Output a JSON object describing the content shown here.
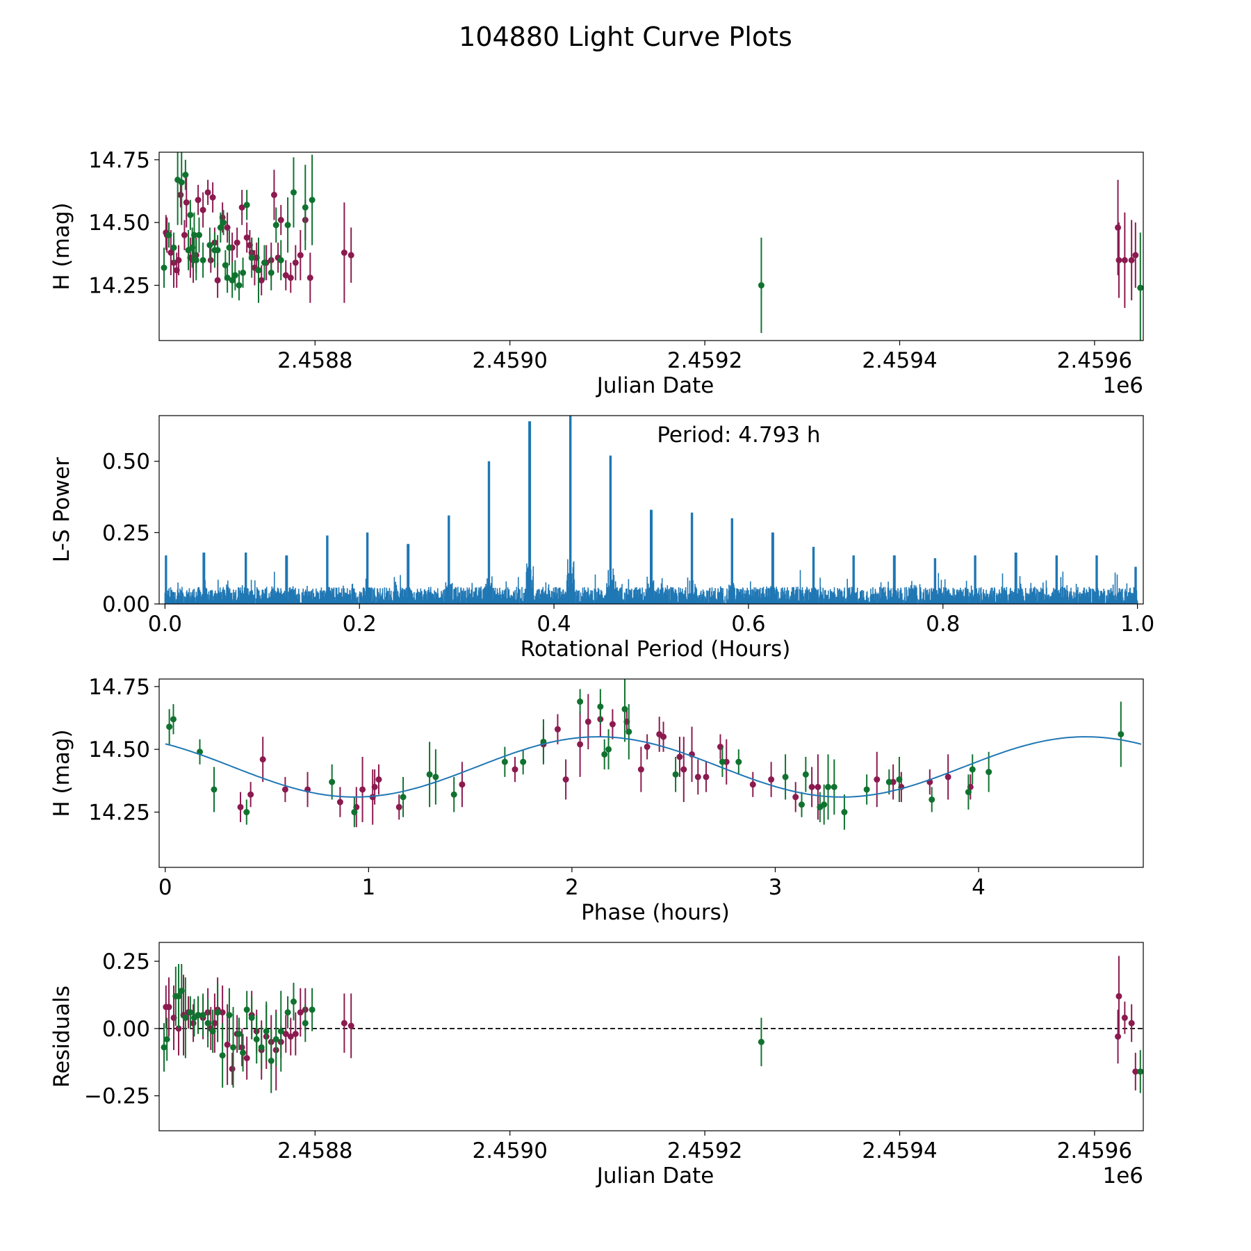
{
  "figure_title": "104880 Light Curve Plots",
  "colors": {
    "magenta": "#8b1a4f",
    "green": "#10722f",
    "blue": "#1f77b4",
    "black": "#000000"
  },
  "chart_data": [
    {
      "id": "lightcurve",
      "type": "scatter",
      "title": "",
      "xlabel": "Julian Date",
      "ylabel": "H (mag)",
      "x_offset_text": "1e6",
      "xlim": [
        2.45864,
        2.45965
      ],
      "ylim": [
        14.03,
        14.78
      ],
      "xticks": [
        2.4588,
        2.459,
        2.4592,
        2.4594,
        2.4596
      ],
      "xtick_labels": [
        "2.4588",
        "2.4590",
        "2.4592",
        "2.4594",
        "2.4596"
      ],
      "yticks": [
        14.25,
        14.5,
        14.75
      ],
      "ytick_labels": [
        "14.25",
        "14.50",
        "14.75"
      ],
      "series": [
        {
          "name": "magenta points",
          "color": "#8b1a4f",
          "x": [
            2.458647,
            2.458648,
            2.458652,
            2.458655,
            2.458658,
            2.45866,
            2.458662,
            2.458666,
            2.458668,
            2.458672,
            2.458675,
            2.458678,
            2.45868,
            2.458685,
            2.45869,
            2.458693,
            2.458695,
            2.458697,
            2.4587,
            2.458705,
            2.45871,
            2.458715,
            2.45872,
            2.458725,
            2.45873,
            2.458733,
            2.458735,
            2.458738,
            2.45874,
            2.458745,
            2.45875,
            2.458755,
            2.458758,
            2.458762,
            2.458765,
            2.45877,
            2.458775,
            2.45878,
            2.458785,
            2.45879,
            2.458795,
            2.45883,
            2.458837,
            2.459624,
            2.459625,
            2.459631,
            2.459638,
            2.459642
          ],
          "y": [
            14.46,
            14.45,
            14.38,
            14.34,
            14.31,
            14.35,
            14.61,
            14.45,
            14.58,
            14.36,
            14.35,
            14.37,
            14.59,
            14.55,
            14.62,
            14.35,
            14.6,
            14.42,
            14.27,
            14.52,
            14.48,
            14.4,
            14.42,
            14.56,
            14.44,
            14.41,
            14.38,
            14.32,
            14.36,
            14.27,
            14.34,
            14.35,
            14.61,
            14.36,
            14.51,
            14.29,
            14.28,
            14.34,
            14.37,
            14.51,
            14.28,
            14.38,
            14.37,
            14.48,
            14.35,
            14.35,
            14.35,
            14.37
          ],
          "err": [
            0.07,
            0.07,
            0.09,
            0.1,
            0.07,
            0.06,
            0.05,
            0.06,
            0.1,
            0.08,
            0.09,
            0.07,
            0.06,
            0.07,
            0.05,
            0.05,
            0.06,
            0.06,
            0.07,
            0.06,
            0.06,
            0.06,
            0.06,
            0.07,
            0.06,
            0.06,
            0.06,
            0.07,
            0.06,
            0.06,
            0.07,
            0.07,
            0.1,
            0.06,
            0.06,
            0.06,
            0.06,
            0.07,
            0.1,
            0.08,
            0.1,
            0.2,
            0.11,
            0.19,
            0.15,
            0.19,
            0.16,
            0.13
          ]
        },
        {
          "name": "green points",
          "color": "#10722f",
          "x": [
            2.458645,
            2.45865,
            2.458655,
            2.458659,
            2.458663,
            2.458667,
            2.45867,
            2.458672,
            2.458674,
            2.458676,
            2.458678,
            2.458681,
            2.458685,
            2.458692,
            2.458697,
            2.4587,
            2.458703,
            2.458706,
            2.458708,
            2.45871,
            2.458712,
            2.458715,
            2.458718,
            2.458722,
            2.458726,
            2.45873,
            2.458735,
            2.458742,
            2.458748,
            2.458755,
            2.45876,
            2.458765,
            2.458772,
            2.458778,
            2.45879,
            2.458797,
            2.459258,
            2.459647
          ],
          "y": [
            14.32,
            14.45,
            14.4,
            14.67,
            14.66,
            14.69,
            14.39,
            14.53,
            14.4,
            14.45,
            14.35,
            14.45,
            14.35,
            14.41,
            14.39,
            14.39,
            14.48,
            14.5,
            14.33,
            14.28,
            14.4,
            14.27,
            14.29,
            14.25,
            14.3,
            14.57,
            14.36,
            14.31,
            14.34,
            14.3,
            14.49,
            14.35,
            14.49,
            14.62,
            14.56,
            14.59,
            14.25,
            14.24
          ],
          "err": [
            0.08,
            0.05,
            0.06,
            0.18,
            0.17,
            0.06,
            0.08,
            0.06,
            0.08,
            0.09,
            0.08,
            0.07,
            0.07,
            0.07,
            0.07,
            0.06,
            0.06,
            0.05,
            0.06,
            0.06,
            0.07,
            0.07,
            0.06,
            0.06,
            0.06,
            0.06,
            0.08,
            0.13,
            0.07,
            0.07,
            0.07,
            0.08,
            0.11,
            0.14,
            0.17,
            0.18,
            0.19,
            0.22
          ]
        }
      ]
    },
    {
      "id": "periodogram",
      "type": "line",
      "title": "Period: 4.793 h",
      "xlabel": "Rotational Period (Hours)",
      "ylabel": "L-S Power",
      "xlim": [
        -0.006,
        1.006
      ],
      "ylim": [
        0,
        0.66
      ],
      "xticks": [
        0,
        0.2,
        0.4,
        0.6,
        0.8,
        1.0
      ],
      "xtick_labels": [
        "0.0",
        "0.2",
        "0.4",
        "0.6",
        "0.8",
        "1.0"
      ],
      "yticks": [
        0,
        0.25,
        0.5
      ],
      "ytick_labels": [
        "0.00",
        "0.25",
        "0.50"
      ],
      "color": "#1f77b4",
      "noise_level": 0.06,
      "peaks": {
        "x": [
          0.001,
          0.04,
          0.083,
          0.125,
          0.167,
          0.208,
          0.25,
          0.292,
          0.333,
          0.375,
          0.417,
          0.458,
          0.5,
          0.542,
          0.583,
          0.625,
          0.667,
          0.708,
          0.75,
          0.792,
          0.833,
          0.875,
          0.917,
          0.958,
          0.998
        ],
        "y": [
          0.17,
          0.18,
          0.18,
          0.17,
          0.24,
          0.25,
          0.21,
          0.31,
          0.5,
          0.64,
          0.66,
          0.52,
          0.33,
          0.32,
          0.3,
          0.25,
          0.2,
          0.17,
          0.17,
          0.16,
          0.17,
          0.18,
          0.17,
          0.17,
          0.13
        ]
      }
    },
    {
      "id": "phased",
      "type": "scatter",
      "title": "",
      "xlabel": "Phase (hours)",
      "ylabel": "H (mag)",
      "xlim": [
        -0.03,
        4.81
      ],
      "ylim": [
        14.03,
        14.78
      ],
      "xticks": [
        0,
        1,
        2,
        3,
        4
      ],
      "xtick_labels": [
        "0",
        "1",
        "2",
        "3",
        "4"
      ],
      "yticks": [
        14.25,
        14.5,
        14.75
      ],
      "ytick_labels": [
        "14.25",
        "14.50",
        "14.75"
      ],
      "fit": {
        "mean": 14.43,
        "amplitude": 0.12,
        "period_hours": 2.3965,
        "phase_of_max": 2.13,
        "x_range": [
          0,
          4.8
        ]
      },
      "series": [
        {
          "name": "magenta points",
          "color": "#8b1a4f",
          "x": [
            0.37,
            0.42,
            0.48,
            0.59,
            0.7,
            0.86,
            0.94,
            0.97,
            1.02,
            1.03,
            1.05,
            1.15,
            1.46,
            1.72,
            1.86,
            1.93,
            1.97,
            2.04,
            2.08,
            2.14,
            2.2,
            2.27,
            2.34,
            2.37,
            2.43,
            2.45,
            2.53,
            2.55,
            2.59,
            2.62,
            2.66,
            2.73,
            2.76,
            2.89,
            2.98,
            3.1,
            3.18,
            3.21,
            3.5,
            3.58,
            3.62,
            3.76,
            3.85,
            3.96
          ],
          "y": [
            14.27,
            14.32,
            14.46,
            14.34,
            14.34,
            14.29,
            14.27,
            14.34,
            14.31,
            14.35,
            14.38,
            14.27,
            14.36,
            14.42,
            14.52,
            14.58,
            14.38,
            14.52,
            14.61,
            14.62,
            14.6,
            14.61,
            14.42,
            14.51,
            14.56,
            14.55,
            14.47,
            14.42,
            14.48,
            14.39,
            14.39,
            14.51,
            14.45,
            14.36,
            14.38,
            14.31,
            14.35,
            14.35,
            14.38,
            14.37,
            14.35,
            14.37,
            14.39,
            14.35
          ]
        },
        {
          "name": "green points",
          "color": "#10722f",
          "x": [
            0.02,
            0.04,
            0.17,
            0.24,
            0.4,
            0.82,
            0.93,
            1.17,
            1.3,
            1.33,
            1.42,
            1.67,
            1.76,
            1.86,
            2.04,
            2.14,
            2.16,
            2.18,
            2.26,
            2.28,
            2.51,
            2.74,
            2.82,
            3.05,
            3.13,
            3.15,
            3.22,
            3.24,
            3.26,
            3.29,
            3.34,
            3.45,
            3.56,
            3.61,
            3.77,
            3.95,
            3.97,
            4.05,
            4.7
          ],
          "y": [
            14.59,
            14.62,
            14.49,
            14.34,
            14.25,
            14.37,
            14.25,
            14.31,
            14.4,
            14.39,
            14.32,
            14.45,
            14.45,
            14.53,
            14.69,
            14.67,
            14.48,
            14.5,
            14.66,
            14.57,
            14.4,
            14.45,
            14.45,
            14.39,
            14.28,
            14.4,
            14.27,
            14.28,
            14.35,
            14.35,
            14.25,
            14.34,
            14.37,
            14.38,
            14.3,
            14.33,
            14.42,
            14.41,
            14.56
          ]
        }
      ]
    },
    {
      "id": "residuals",
      "type": "scatter",
      "title": "",
      "xlabel": "Julian Date",
      "ylabel": "Residuals",
      "x_offset_text": "1e6",
      "xlim": [
        2.45864,
        2.45965
      ],
      "ylim": [
        -0.38,
        0.32
      ],
      "reference_line": 0,
      "xticks": [
        2.4588,
        2.459,
        2.4592,
        2.4594,
        2.4596
      ],
      "xtick_labels": [
        "2.4588",
        "2.4590",
        "2.4592",
        "2.4594",
        "2.4596"
      ],
      "yticks": [
        -0.25,
        0,
        0.25
      ],
      "ytick_labels": [
        "−0.25",
        "0.00",
        "0.25"
      ],
      "series": [
        {
          "name": "magenta points",
          "color": "#8b1a4f",
          "x": [
            2.458647,
            2.45865,
            2.458655,
            2.45866,
            2.458665,
            2.45867,
            2.458675,
            2.45868,
            2.458685,
            2.45869,
            2.458693,
            2.458697,
            2.4587,
            2.458705,
            2.45871,
            2.458715,
            2.45872,
            2.458725,
            2.45873,
            2.458735,
            2.45874,
            2.458745,
            2.45875,
            2.458755,
            2.45876,
            2.458765,
            2.45877,
            2.458775,
            2.45878,
            2.458785,
            2.45879,
            2.45883,
            2.458837,
            2.459624,
            2.459625,
            2.459631,
            2.459638,
            2.459642
          ],
          "y": [
            0.08,
            0.08,
            0.04,
            0.0,
            0.05,
            0.06,
            0.02,
            0.05,
            0.04,
            0.06,
            0.0,
            0.02,
            0.07,
            0.06,
            -0.06,
            -0.15,
            -0.02,
            -0.07,
            -0.11,
            0.05,
            -0.01,
            -0.08,
            -0.03,
            -0.05,
            -0.08,
            -0.05,
            -0.02,
            -0.03,
            -0.02,
            0.06,
            0.07,
            0.02,
            0.01,
            -0.03,
            0.12,
            0.04,
            0.02,
            -0.16
          ]
        },
        {
          "name": "green points",
          "color": "#10722f",
          "x": [
            2.458645,
            2.458648,
            2.458657,
            2.45866,
            2.458663,
            2.458667,
            2.458672,
            2.458676,
            2.45868,
            2.458685,
            2.45869,
            2.458695,
            2.4587,
            2.458705,
            2.458712,
            2.458716,
            2.458722,
            2.458726,
            2.45873,
            2.458735,
            2.45874,
            2.458745,
            2.45875,
            2.458755,
            2.45876,
            2.458765,
            2.458772,
            2.458778,
            2.45879,
            2.458797,
            2.459258,
            2.459647
          ],
          "y": [
            -0.07,
            -0.04,
            0.12,
            0.12,
            0.14,
            0.04,
            0.06,
            0.04,
            0.05,
            0.05,
            0.02,
            -0.01,
            0.06,
            -0.1,
            0.05,
            -0.07,
            -0.02,
            -0.09,
            0.07,
            0.04,
            -0.04,
            -0.07,
            -0.01,
            -0.12,
            -0.04,
            -0.01,
            0.06,
            0.1,
            0.02,
            0.07,
            -0.05,
            -0.16
          ]
        }
      ]
    }
  ]
}
